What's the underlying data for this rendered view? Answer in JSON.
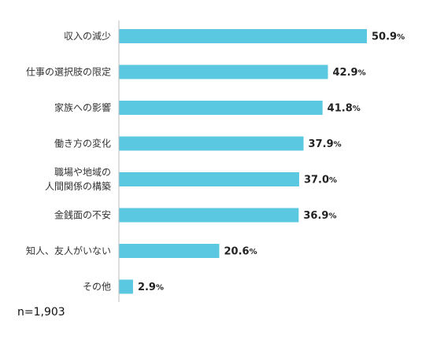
{
  "chart_data": {
    "type": "bar",
    "orientation": "horizontal",
    "categories": [
      [
        "収入の減少"
      ],
      [
        "仕事の選択肢の限定"
      ],
      [
        "家族への影響"
      ],
      [
        "働き方の変化"
      ],
      [
        "職場や地域の",
        "人間関係の構築"
      ],
      [
        "金銭面の不安"
      ],
      [
        "知人、友人がいない"
      ],
      [
        "その他"
      ]
    ],
    "values": [
      50.9,
      42.9,
      41.8,
      37.9,
      37.0,
      36.9,
      20.6,
      2.9
    ],
    "value_labels": [
      "50.9",
      "42.9",
      "41.8",
      "37.9",
      "37.0",
      "36.9",
      "20.6",
      "2.9"
    ],
    "unit": "%",
    "bar_color": "#5bc8e2",
    "axis_color": "#bbbbbb",
    "xlim": [
      0,
      50.9
    ],
    "grid": false
  },
  "footnote": "n=1,903"
}
